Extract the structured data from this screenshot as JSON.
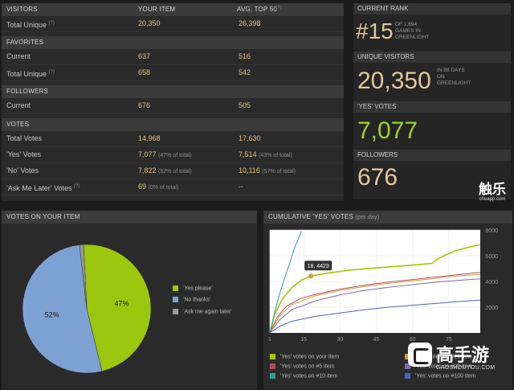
{
  "left_table": {
    "sections": [
      {
        "header": [
          "VISITORS",
          "YOUR ITEM",
          "AVG. TOP 50"
        ],
        "rows": [
          {
            "label": "Total Unique",
            "help": true,
            "yours": "20,350",
            "avg": "26,398"
          }
        ]
      },
      {
        "header": [
          "FAVORITES",
          "",
          ""
        ],
        "rows": [
          {
            "label": "Current",
            "help": false,
            "yours": "637",
            "avg": "516"
          },
          {
            "label": "Total Unique",
            "help": true,
            "yours": "658",
            "avg": "542"
          }
        ]
      },
      {
        "header": [
          "FOLLOWERS",
          "",
          ""
        ],
        "rows": [
          {
            "label": "Current",
            "help": false,
            "yours": "676",
            "avg": "505"
          }
        ]
      },
      {
        "header": [
          "VOTES",
          "",
          ""
        ],
        "rows": [
          {
            "label": "Total Votes",
            "help": false,
            "yours": "14,968",
            "avg": "17,630"
          },
          {
            "label": "'Yes' Votes",
            "help": false,
            "yours": "7,077",
            "yours_pct": "(47% of total)",
            "avg": "7,514",
            "avg_pct": "(43% of total)"
          },
          {
            "label": "'No' Votes",
            "help": false,
            "yours": "7,822",
            "yours_pct": "(52% of total)",
            "avg": "10,116",
            "avg_pct": "(57% of total)"
          },
          {
            "label": "'Ask Me Later' Votes",
            "help": true,
            "yours": "69",
            "yours_pct": "(0% of total)",
            "avg": "--"
          }
        ]
      }
    ],
    "help_mark": "(?)"
  },
  "right": {
    "current_rank_label": "CURRENT RANK",
    "rank": "#15",
    "rank_note": [
      "OF 1,694",
      "GAMES IN",
      "GREENLIGHT"
    ],
    "unique_label": "UNIQUE VISITORS",
    "unique_value": "20,350",
    "unique_note": [
      "IN 88 DAYS",
      "ON",
      "GREENLIGHT"
    ],
    "yes_label": "'YES' VOTES",
    "yes_value": "7,077",
    "followers_label": "FOLLOWERS",
    "followers_value": "676"
  },
  "watermark_top": {
    "cn": "触乐",
    "site": "chuapp.com"
  },
  "watermark_bottom": {
    "cn": "高手游",
    "site": "GAOSHOUYOU.COM"
  },
  "pie": {
    "title": "VOTES ON YOUR ITEM",
    "slices": [
      {
        "label": "'Yes please'",
        "pct": 47,
        "text": "47%",
        "color": "#9bc70f"
      },
      {
        "label": "'No thanks'",
        "pct": 52,
        "text": "52%",
        "color": "#7ea1d3"
      },
      {
        "label": "'Ask me again later'",
        "pct": 1,
        "text": "",
        "color": "#9a9a9a"
      }
    ]
  },
  "chart_data": {
    "type": "line",
    "title": "CUMULATIVE 'YES' VOTES",
    "subtitle": "(per day)",
    "x_ticks": [
      1,
      15,
      30,
      45,
      60,
      75
    ],
    "y_ticks": [
      2000,
      4000,
      6000,
      8000
    ],
    "xlim": [
      1,
      88
    ],
    "ylim": [
      0,
      8000
    ],
    "tooltip": "18, 4423",
    "series": [
      {
        "name": "'Yes' votes on your item",
        "color": "#a5c700",
        "points": [
          [
            1,
            0
          ],
          [
            3,
            1400
          ],
          [
            6,
            2600
          ],
          [
            10,
            3500
          ],
          [
            14,
            4100
          ],
          [
            18,
            4423
          ],
          [
            25,
            4650
          ],
          [
            35,
            4900
          ],
          [
            45,
            5050
          ],
          [
            55,
            5200
          ],
          [
            62,
            5300
          ],
          [
            68,
            5400
          ],
          [
            70,
            5700
          ],
          [
            73,
            6000
          ],
          [
            78,
            6400
          ],
          [
            84,
            6700
          ],
          [
            88,
            6850
          ]
        ]
      },
      {
        "name": "'Yes' votes on #5 item",
        "color": "#b0505a",
        "points": [
          [
            1,
            0
          ],
          [
            4,
            1200
          ],
          [
            8,
            2100
          ],
          [
            14,
            2700
          ],
          [
            20,
            3000
          ],
          [
            30,
            3400
          ],
          [
            40,
            3700
          ],
          [
            50,
            3950
          ],
          [
            60,
            4150
          ],
          [
            70,
            4350
          ],
          [
            80,
            4550
          ],
          [
            88,
            4700
          ]
        ]
      },
      {
        "name": "'Yes' votes on #10 item",
        "color": "#2e9e9a",
        "points": [
          [
            1,
            0
          ],
          [
            3,
            1600
          ],
          [
            5,
            3000
          ],
          [
            7,
            4200
          ],
          [
            9,
            5300
          ],
          [
            11,
            6500
          ],
          [
            13,
            7400
          ],
          [
            14,
            7900
          ]
        ]
      },
      {
        "name": "'Yes' votes on #20 item",
        "color": "#d69a3a",
        "points": [
          [
            1,
            0
          ],
          [
            5,
            1300
          ],
          [
            10,
            2200
          ],
          [
            20,
            2900
          ],
          [
            30,
            3300
          ],
          [
            40,
            3600
          ],
          [
            50,
            3850
          ],
          [
            60,
            4050
          ],
          [
            70,
            4250
          ],
          [
            80,
            4450
          ],
          [
            88,
            4550
          ]
        ]
      },
      {
        "name": "'Yes' votes on #20 item",
        "color": "#7b6bb4",
        "points": [
          [
            1,
            0
          ],
          [
            5,
            1000
          ],
          [
            10,
            1800
          ],
          [
            20,
            2500
          ],
          [
            30,
            2950
          ],
          [
            40,
            3300
          ],
          [
            50,
            3550
          ],
          [
            60,
            3750
          ],
          [
            70,
            3950
          ],
          [
            80,
            4100
          ],
          [
            88,
            4200
          ]
        ]
      },
      {
        "name": "'Yes' votes on #100 item",
        "color": "#4f61b8",
        "points": [
          [
            1,
            0
          ],
          [
            5,
            500
          ],
          [
            10,
            900
          ],
          [
            20,
            1300
          ],
          [
            30,
            1550
          ],
          [
            40,
            1800
          ],
          [
            50,
            2000
          ],
          [
            60,
            2150
          ],
          [
            70,
            2300
          ],
          [
            80,
            2450
          ],
          [
            88,
            2550
          ]
        ]
      }
    ]
  }
}
